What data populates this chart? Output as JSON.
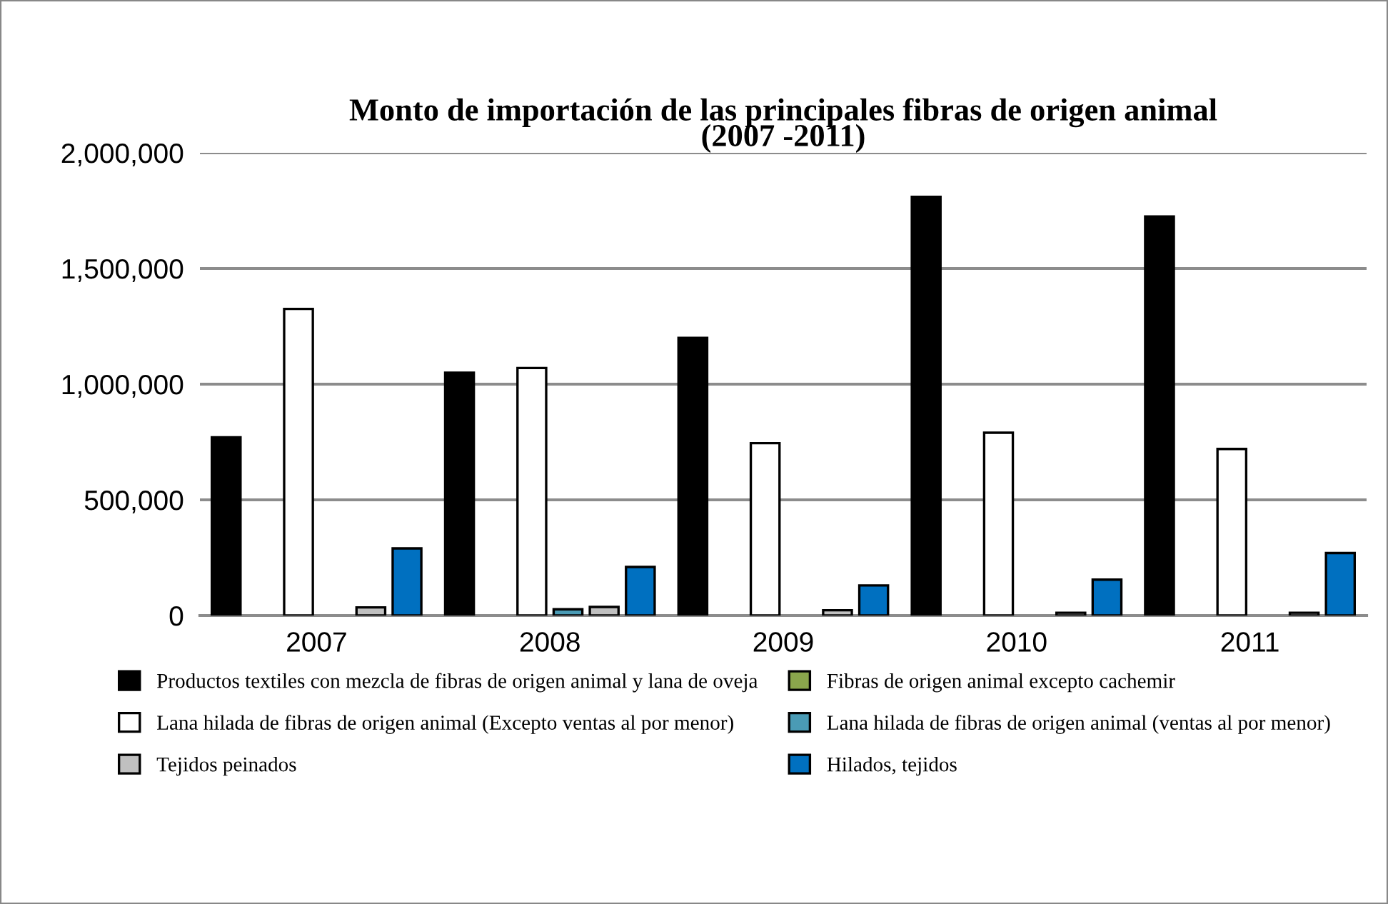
{
  "chart_data": {
    "type": "bar",
    "title": "Monto de importación de las principales fibras de origen animal\n(2007 -2011)",
    "categories": [
      "2007",
      "2008",
      "2009",
      "2010",
      "2011"
    ],
    "series": [
      {
        "name": "Productos textiles con mezcla de fibras de origen animal y lana de oveja",
        "color": "#000000",
        "values": [
          770000,
          1050000,
          1200000,
          1810000,
          1725000
        ]
      },
      {
        "name": "Fibras de origen animal excepto cachemir",
        "color": "#8aa64c",
        "values": [
          null,
          null,
          null,
          null,
          null
        ]
      },
      {
        "name": "Lana hilada de fibras de origen animal (Excepto ventas al por menor)",
        "color": "#ffffff",
        "values": [
          1325000,
          1070000,
          745000,
          790000,
          720000
        ]
      },
      {
        "name": "Lana hilada de fibras de origen animal (ventas al por menor)",
        "color": "#4a9bb5",
        "values": [
          null,
          27000,
          null,
          null,
          null
        ]
      },
      {
        "name": "Tejidos peinados",
        "color": "#c0c0c0",
        "values": [
          35000,
          37000,
          23000,
          12000,
          12000
        ]
      },
      {
        "name": "Hilados, tejidos",
        "color": "#0070c0",
        "values": [
          290000,
          210000,
          130000,
          155000,
          270000
        ]
      }
    ],
    "ylim": [
      0,
      2000000
    ],
    "yticks": [
      {
        "value": 0,
        "label": "0"
      },
      {
        "value": 500000,
        "label": "500,000"
      },
      {
        "value": 1000000,
        "label": "1,000,000"
      },
      {
        "value": 1500000,
        "label": "1,500,000"
      },
      {
        "value": 2000000,
        "label": "2,000,000"
      }
    ],
    "grid": "y",
    "legend": "bottom"
  }
}
